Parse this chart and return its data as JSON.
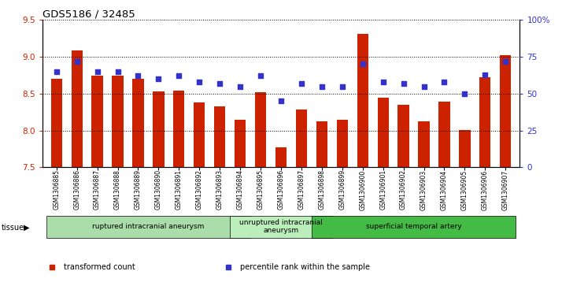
{
  "title": "GDS5186 / 32485",
  "samples": [
    "GSM1306885",
    "GSM1306886",
    "GSM1306887",
    "GSM1306888",
    "GSM1306889",
    "GSM1306890",
    "GSM1306891",
    "GSM1306892",
    "GSM1306893",
    "GSM1306894",
    "GSM1306895",
    "GSM1306896",
    "GSM1306897",
    "GSM1306898",
    "GSM1306899",
    "GSM1306900",
    "GSM1306901",
    "GSM1306902",
    "GSM1306903",
    "GSM1306904",
    "GSM1306905",
    "GSM1306906",
    "GSM1306907"
  ],
  "bar_values": [
    8.7,
    9.09,
    8.75,
    8.75,
    8.7,
    8.53,
    8.54,
    8.38,
    8.33,
    8.15,
    8.52,
    7.77,
    8.29,
    8.12,
    8.15,
    9.31,
    8.44,
    8.35,
    8.12,
    8.39,
    8.01,
    8.72,
    9.02
  ],
  "percentile_values": [
    65,
    72,
    65,
    65,
    62,
    60,
    62,
    58,
    57,
    55,
    62,
    45,
    57,
    55,
    55,
    70,
    58,
    57,
    55,
    58,
    50,
    63,
    72
  ],
  "ylim_left": [
    7.5,
    9.5
  ],
  "ylim_right": [
    0,
    100
  ],
  "yticks_left": [
    7.5,
    8.0,
    8.5,
    9.0,
    9.5
  ],
  "yticks_right": [
    0,
    25,
    50,
    75,
    100
  ],
  "bar_color": "#CC2200",
  "dot_color": "#3333CC",
  "grid_color": "#000000",
  "bg_color": "#FFFFFF",
  "plot_bg_color": "#FFFFFF",
  "xticklabel_bg": "#DDDDDD",
  "tissue_groups": [
    {
      "label": "ruptured intracranial aneurysm",
      "start": 0,
      "end": 9,
      "color": "#AADDAA"
    },
    {
      "label": "unruptured intracranial\naneurysm",
      "start": 9,
      "end": 13,
      "color": "#BBEEBB"
    },
    {
      "label": "superficial temporal artery",
      "start": 13,
      "end": 22,
      "color": "#44BB44"
    }
  ],
  "legend_items": [
    {
      "label": "transformed count",
      "color": "#CC2200"
    },
    {
      "label": "percentile rank within the sample",
      "color": "#3333CC"
    }
  ],
  "tissue_label": "tissue"
}
